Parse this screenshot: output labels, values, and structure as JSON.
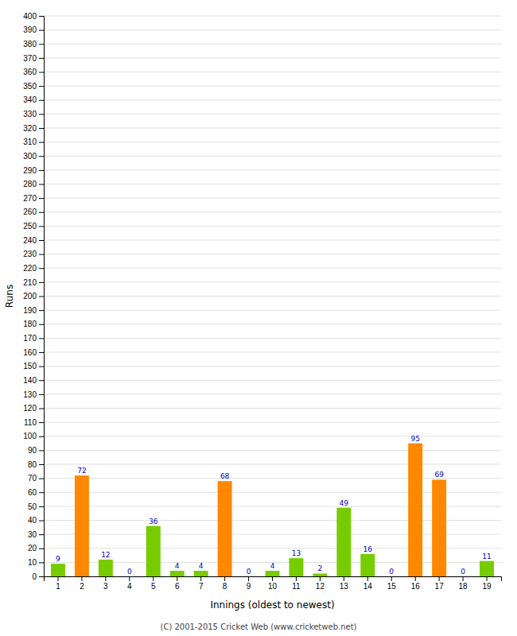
{
  "chart_data": {
    "type": "bar",
    "xlabel": "Innings (oldest to newest)",
    "ylabel": "Runs",
    "categories": [
      "1",
      "2",
      "3",
      "4",
      "5",
      "6",
      "7",
      "8",
      "9",
      "10",
      "11",
      "12",
      "13",
      "14",
      "15",
      "16",
      "17",
      "18",
      "19"
    ],
    "values": [
      9,
      72,
      12,
      0,
      36,
      4,
      4,
      68,
      0,
      4,
      13,
      2,
      49,
      16,
      0,
      95,
      69,
      0,
      11
    ],
    "colors": [
      "#77cc00",
      "#ff8800",
      "#77cc00",
      "#77cc00",
      "#77cc00",
      "#77cc00",
      "#77cc00",
      "#ff8800",
      "#77cc00",
      "#77cc00",
      "#77cc00",
      "#77cc00",
      "#77cc00",
      "#77cc00",
      "#77cc00",
      "#ff8800",
      "#ff8800",
      "#77cc00",
      "#77cc00"
    ],
    "ylim": [
      0,
      400
    ],
    "yticks": [
      0,
      10,
      20,
      30,
      40,
      50,
      60,
      70,
      80,
      90,
      100,
      110,
      120,
      130,
      140,
      150,
      160,
      170,
      180,
      190,
      200,
      210,
      220,
      230,
      240,
      250,
      260,
      270,
      280,
      290,
      300,
      310,
      320,
      330,
      340,
      350,
      360,
      370,
      380,
      390,
      400
    ],
    "grid": true,
    "data_labels": true,
    "annotations": [
      "(C) 2001-2015 Cricket Web (www.cricketweb.net)"
    ]
  }
}
